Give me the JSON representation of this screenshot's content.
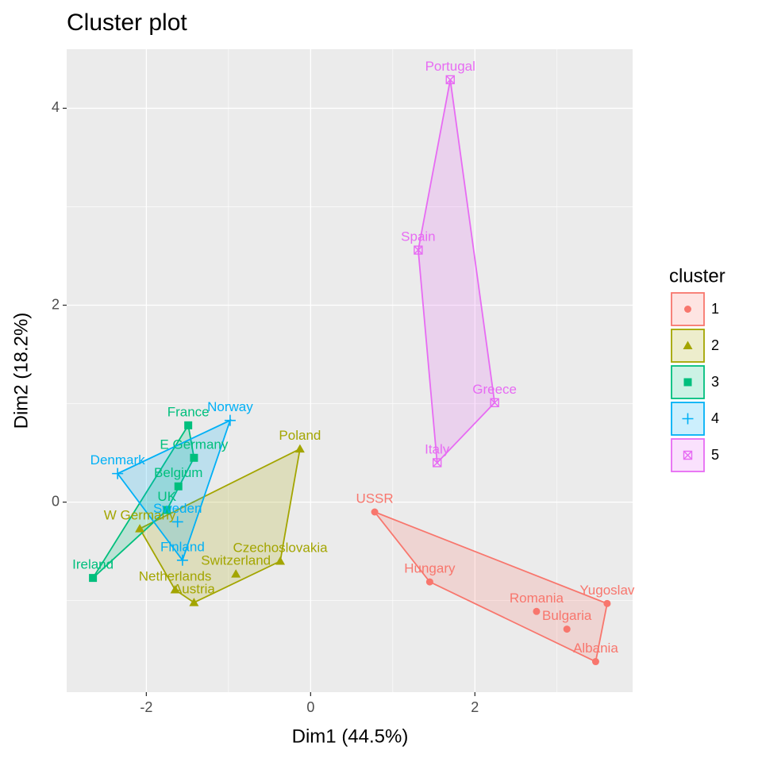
{
  "chart_data": {
    "type": "cluster",
    "title": "Cluster plot",
    "x_label": "Dim1 (44.5%)",
    "y_label": "Dim2 (18.2%)",
    "legend_title": "cluster",
    "xlim": [
      -2.97,
      3.92
    ],
    "ylim": [
      -1.93,
      4.6
    ],
    "xticks": [
      -2,
      0,
      2
    ],
    "yticks": [
      0,
      2,
      4
    ],
    "grid": true,
    "series": [
      {
        "name": "1",
        "color": "#F8766D",
        "shape": "circle",
        "labels": [
          "USSR",
          "Hungary",
          "Romania",
          "Bulgaria",
          "Yugoslav",
          "Albania"
        ],
        "x": [
          0.78,
          1.45,
          2.75,
          3.12,
          3.61,
          3.47
        ],
        "y": [
          -0.1,
          -0.81,
          -1.11,
          -1.29,
          -1.03,
          -1.62
        ]
      },
      {
        "name": "2",
        "color": "#A3A500",
        "shape": "triangle",
        "labels": [
          "Poland",
          "Czechoslovakia",
          "Switzerland",
          "Austria",
          "Netherlands",
          "W Germany"
        ],
        "x": [
          -0.13,
          -0.37,
          -0.91,
          -1.42,
          -1.65,
          -2.08
        ],
        "y": [
          0.54,
          -0.6,
          -0.73,
          -1.02,
          -0.89,
          -0.27
        ]
      },
      {
        "name": "3",
        "color": "#00BF7D",
        "shape": "square",
        "labels": [
          "France",
          "E Germany",
          "Belgium",
          "UK",
          "Ireland"
        ],
        "x": [
          -1.49,
          -1.42,
          -1.61,
          -1.75,
          -2.65
        ],
        "y": [
          0.78,
          0.45,
          0.16,
          -0.08,
          -0.77
        ]
      },
      {
        "name": "4",
        "color": "#00B0F6",
        "shape": "plus",
        "labels": [
          "Norway",
          "Denmark",
          "Sweden",
          "Finland"
        ],
        "x": [
          -0.98,
          -2.35,
          -1.62,
          -1.56
        ],
        "y": [
          0.83,
          0.29,
          -0.2,
          -0.59
        ]
      },
      {
        "name": "5",
        "color": "#E76BF3",
        "shape": "boxx",
        "labels": [
          "Portugal",
          "Spain",
          "Greece",
          "Italy"
        ],
        "x": [
          1.7,
          1.31,
          2.24,
          1.54
        ],
        "y": [
          4.29,
          2.56,
          1.01,
          0.4
        ]
      }
    ]
  }
}
